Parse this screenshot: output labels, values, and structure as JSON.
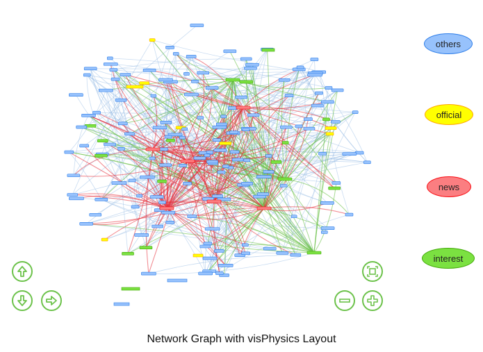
{
  "caption": "Network Graph with visPhysics Layout",
  "legend": [
    {
      "label": "others",
      "fill": "#97c2fc",
      "stroke": "#2b7ce9"
    },
    {
      "label": "official",
      "fill": "#ffff00",
      "stroke": "#ffa500"
    },
    {
      "label": "news",
      "fill": "#fb7e81",
      "stroke": "#fa0a10"
    },
    {
      "label": "interest",
      "fill": "#7be141",
      "stroke": "#41a906"
    }
  ],
  "edge_colors": {
    "others": "#9dbfe6",
    "news": "#e8323c",
    "interest": "#6cc24a"
  },
  "controls": {
    "up": "arrow-up-icon",
    "down": "arrow-down-icon",
    "right": "arrow-right-icon",
    "fit": "fit-icon",
    "zoom_out": "minus-icon",
    "zoom_in": "plus-icon"
  }
}
